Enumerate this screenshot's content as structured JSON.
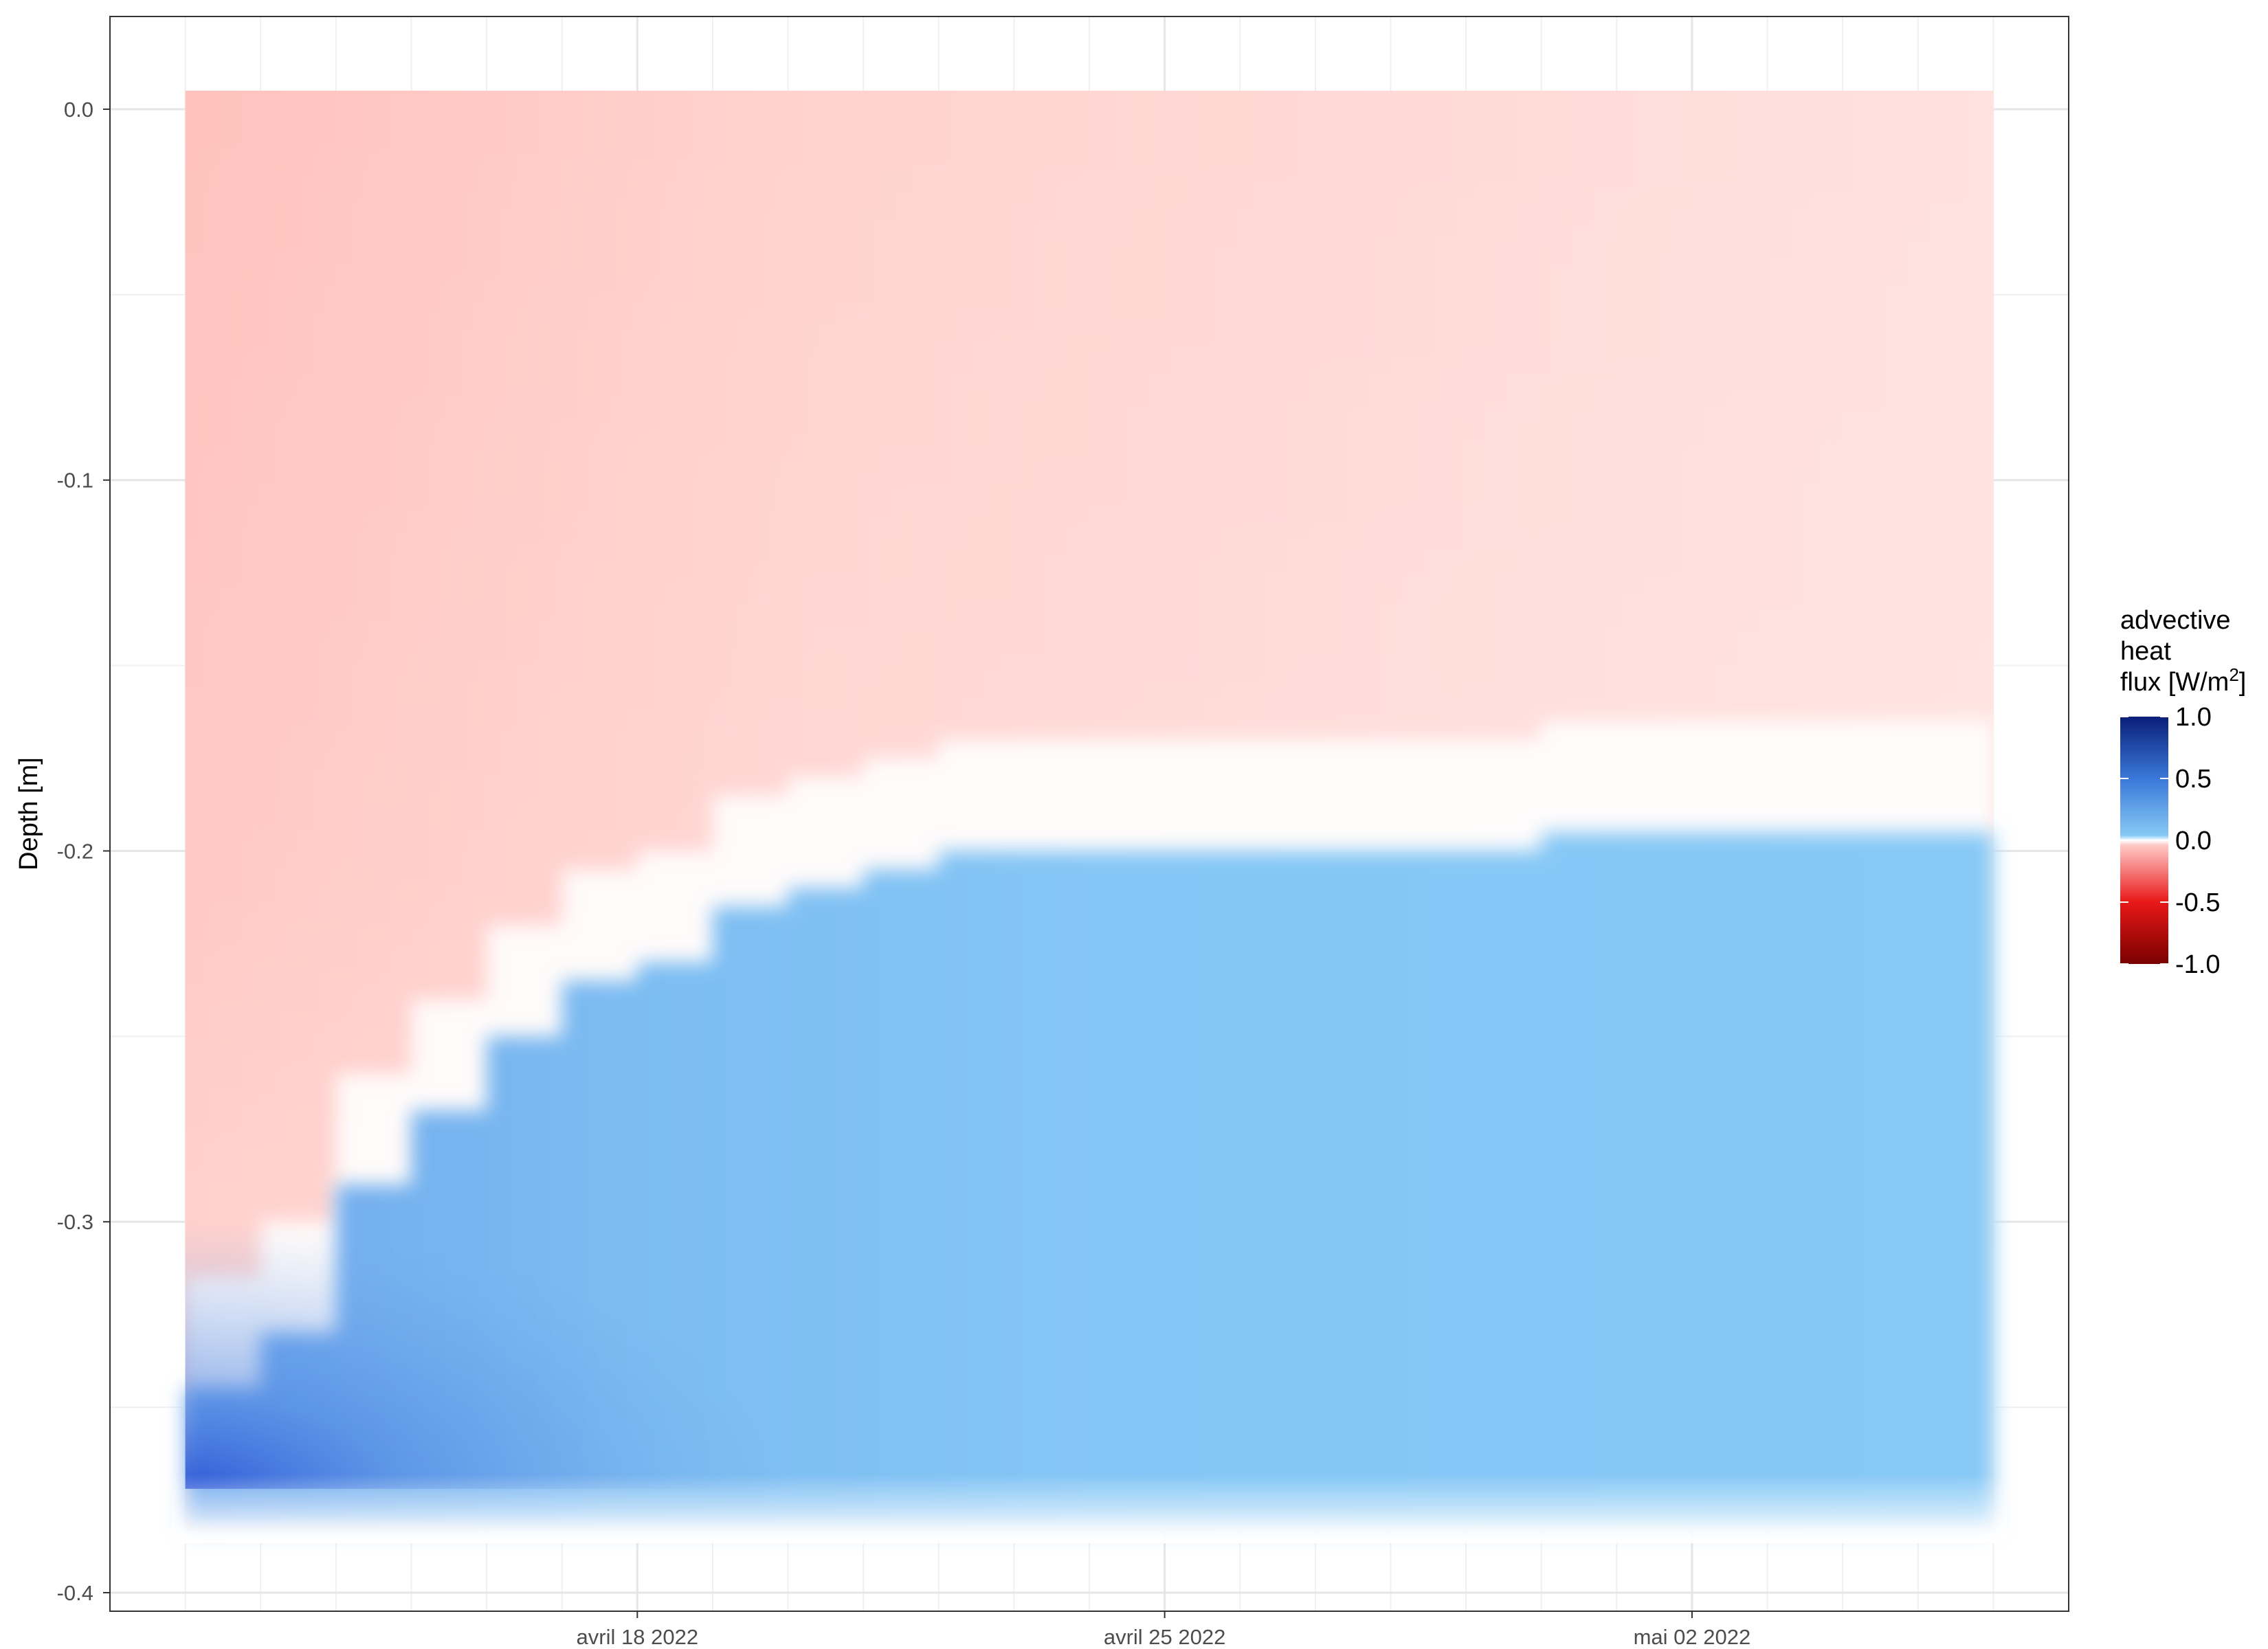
{
  "chart_data": {
    "type": "heatmap",
    "title": "",
    "xlabel": "",
    "ylabel": "Depth [m]",
    "x_axis": {
      "type": "date",
      "range": [
        "2022-04-11",
        "2022-05-07"
      ],
      "ticks": [
        {
          "date": "2022-04-18",
          "label": "avril 18 2022"
        },
        {
          "date": "2022-04-25",
          "label": "avril 25 2022"
        },
        {
          "date": "2022-05-02",
          "label": "mai 02 2022"
        }
      ]
    },
    "y_axis": {
      "range": [
        -0.405,
        0.025
      ],
      "ticks": [
        {
          "value": 0.0,
          "label": "0.0"
        },
        {
          "value": -0.1,
          "label": "-0.1"
        },
        {
          "value": -0.2,
          "label": "-0.2"
        },
        {
          "value": -0.3,
          "label": "-0.3"
        },
        {
          "value": -0.4,
          "label": "-0.4"
        }
      ]
    },
    "grid": true,
    "data_extent": {
      "date_start": "2022-04-12",
      "date_end": "2022-05-06",
      "depth_top": 0.005,
      "depth_bottom": -0.383
    },
    "colorscale": {
      "title": [
        "advective",
        "heat",
        "flux [W/m"
      ],
      "title_superscript": "2",
      "title_suffix": "]",
      "range": [
        -1.0,
        1.0
      ],
      "ticks": [
        {
          "value": 1.0,
          "label": "1.0"
        },
        {
          "value": 0.5,
          "label": "0.5"
        },
        {
          "value": 0.0,
          "label": "0.0"
        },
        {
          "value": -0.5,
          "label": "-0.5"
        },
        {
          "value": -1.0,
          "label": "-1.0"
        }
      ],
      "colors": {
        "max": "#0a1f7a",
        "high": "#3a78d8",
        "low_positive": "#85c9f5",
        "zero": "#ffffff",
        "low_negative": "#ffc9c6",
        "mid_negative": "#e81818",
        "min": "#7a0000"
      }
    },
    "front_depth_boundary": [
      {
        "date": "2022-04-12",
        "depth": -0.345
      },
      {
        "date": "2022-04-13",
        "depth": -0.33
      },
      {
        "date": "2022-04-14",
        "depth": -0.29
      },
      {
        "date": "2022-04-15",
        "depth": -0.27
      },
      {
        "date": "2022-04-16",
        "depth": -0.25
      },
      {
        "date": "2022-04-17",
        "depth": -0.235
      },
      {
        "date": "2022-04-18",
        "depth": -0.23
      },
      {
        "date": "2022-04-19",
        "depth": -0.215
      },
      {
        "date": "2022-04-20",
        "depth": -0.21
      },
      {
        "date": "2022-04-21",
        "depth": -0.205
      },
      {
        "date": "2022-04-22",
        "depth": -0.2
      },
      {
        "date": "2022-04-25",
        "depth": -0.2
      },
      {
        "date": "2022-04-30",
        "depth": -0.195
      },
      {
        "date": "2022-05-06",
        "depth": -0.19
      }
    ],
    "fields": {
      "upper_region_value": -0.15,
      "lower_region_value": 0.35,
      "max_value_near_start_bottom": 0.8
    }
  }
}
